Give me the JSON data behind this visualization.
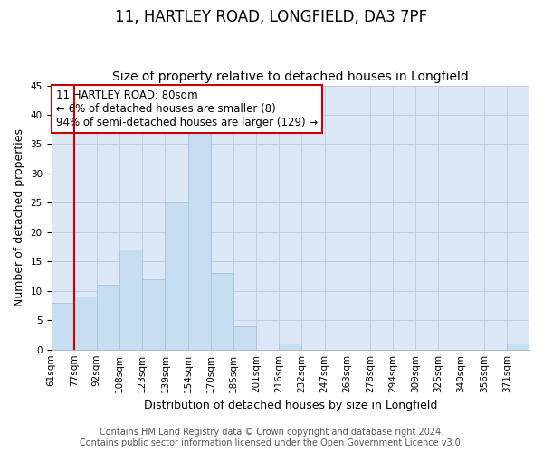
{
  "title": "11, HARTLEY ROAD, LONGFIELD, DA3 7PF",
  "subtitle": "Size of property relative to detached houses in Longfield",
  "xlabel": "Distribution of detached houses by size in Longfield",
  "ylabel": "Number of detached properties",
  "bin_labels": [
    "61sqm",
    "77sqm",
    "92sqm",
    "108sqm",
    "123sqm",
    "139sqm",
    "154sqm",
    "170sqm",
    "185sqm",
    "201sqm",
    "216sqm",
    "232sqm",
    "247sqm",
    "263sqm",
    "278sqm",
    "294sqm",
    "309sqm",
    "325sqm",
    "340sqm",
    "356sqm",
    "371sqm"
  ],
  "bar_heights": [
    8,
    9,
    11,
    17,
    12,
    25,
    37,
    13,
    4,
    0,
    1,
    0,
    0,
    0,
    0,
    0,
    0,
    0,
    0,
    0,
    1
  ],
  "bar_color": "#c7ddf2",
  "bar_edge_color": "#a8c4e0",
  "ylim": [
    0,
    45
  ],
  "yticks": [
    0,
    5,
    10,
    15,
    20,
    25,
    30,
    35,
    40,
    45
  ],
  "property_line_x": 1,
  "annotation_title": "11 HARTLEY ROAD: 80sqm",
  "annotation_line1": "← 6% of detached houses are smaller (8)",
  "annotation_line2": "94% of semi-detached houses are larger (129) →",
  "footer_line1": "Contains HM Land Registry data © Crown copyright and database right 2024.",
  "footer_line2": "Contains public sector information licensed under the Open Government Licence v3.0.",
  "annotation_box_color": "#ffffff",
  "annotation_box_edge": "#cc0000",
  "property_line_color": "#cc0000",
  "title_fontsize": 12,
  "subtitle_fontsize": 10,
  "axis_label_fontsize": 9,
  "tick_fontsize": 7.5,
  "annotation_fontsize": 8.5,
  "footer_fontsize": 7,
  "background_color": "#ffffff",
  "axes_bg_color": "#dce8f5",
  "grid_color": "#c0cfe0"
}
